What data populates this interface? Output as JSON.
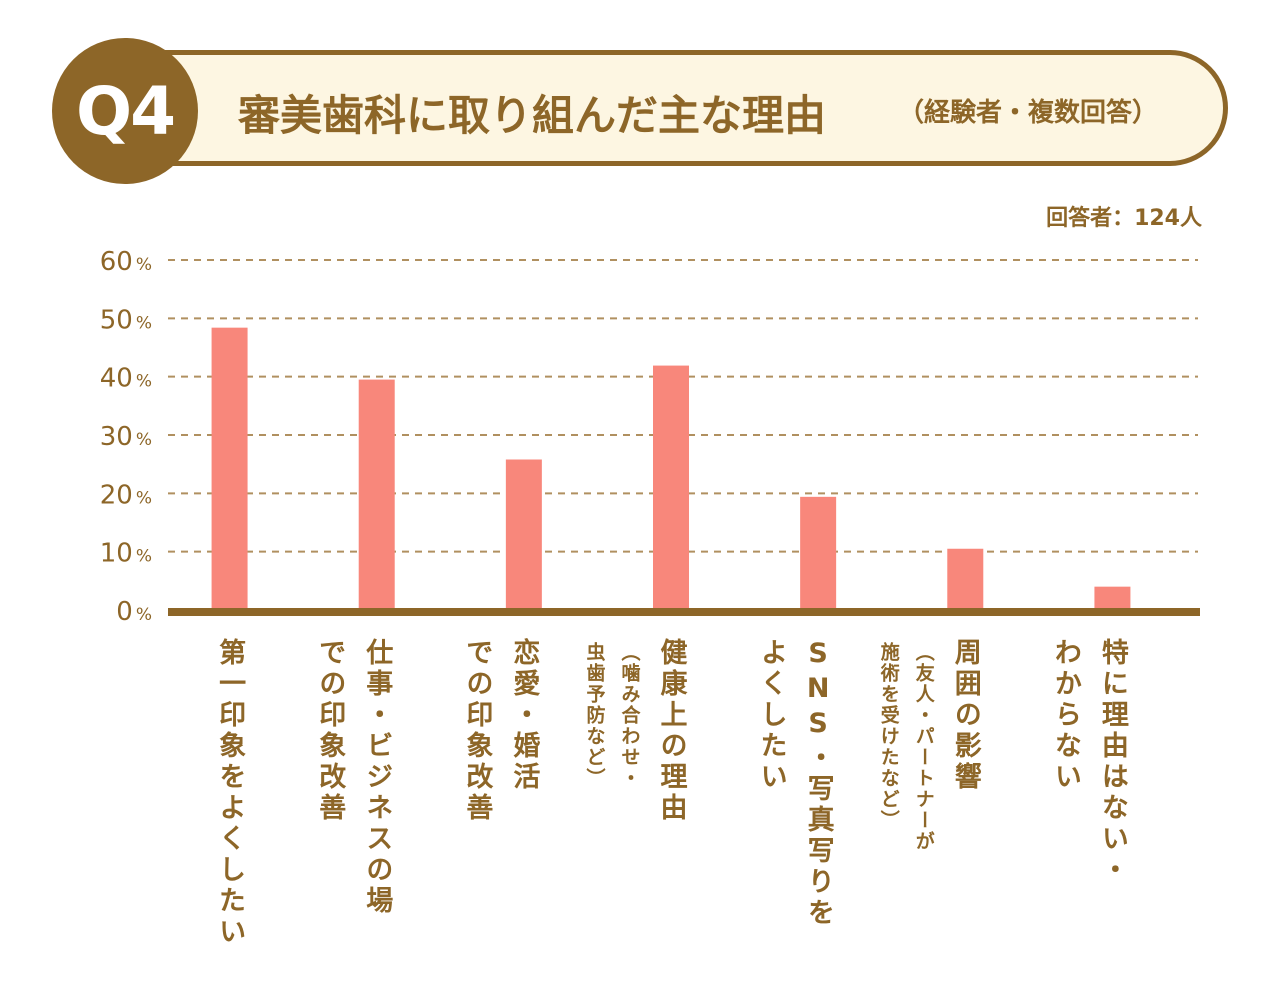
{
  "header": {
    "badge": "Q4",
    "title": "審美歯科に取り組んだ主な理由",
    "subtitle": "（経験者・複数回答）",
    "respondents": "回答者：124人"
  },
  "colors": {
    "brand_brown": "#8d6628",
    "banner_fill": "#fdf6e2",
    "bar": "#f8877b",
    "grid": "#b09060"
  },
  "chart_data": {
    "type": "bar",
    "categories": [
      "第一印象をよくしたい",
      "仕事・ビジネスの場での印象改善",
      "恋愛・婚活での印象改善",
      "健康上の理由（噛み合わせ・虫歯予防など）",
      "SNS・写真写りをよくしたい",
      "周囲の影響（友人・パートナーが施術を受けたなど）",
      "特に理由はない・わからない"
    ],
    "label_lines": [
      {
        "main": [
          "第一印象をよくしたい"
        ],
        "sub": []
      },
      {
        "main": [
          "仕事・ビジネスの場",
          "での印象改善"
        ],
        "sub": []
      },
      {
        "main": [
          "恋愛・婚活",
          "での印象改善"
        ],
        "sub": []
      },
      {
        "main": [
          "健康上の理由"
        ],
        "sub": [
          "（噛み合わせ・",
          "虫歯予防など）"
        ]
      },
      {
        "main": [
          "SNS・写真写りを",
          "よくしたい"
        ],
        "sub": []
      },
      {
        "main": [
          "周囲の影響"
        ],
        "sub": [
          "（友人・パートナーが",
          "施術を受けたなど）"
        ]
      },
      {
        "main": [
          "特に理由はない・",
          "わからない"
        ],
        "sub": []
      }
    ],
    "values": [
      48.4,
      39.5,
      25.8,
      41.9,
      19.4,
      10.5,
      4.0
    ],
    "ylim": [
      0,
      60
    ],
    "yticks": [
      0,
      10,
      20,
      30,
      40,
      50,
      60
    ],
    "ytick_unit": "%",
    "grid": true
  }
}
